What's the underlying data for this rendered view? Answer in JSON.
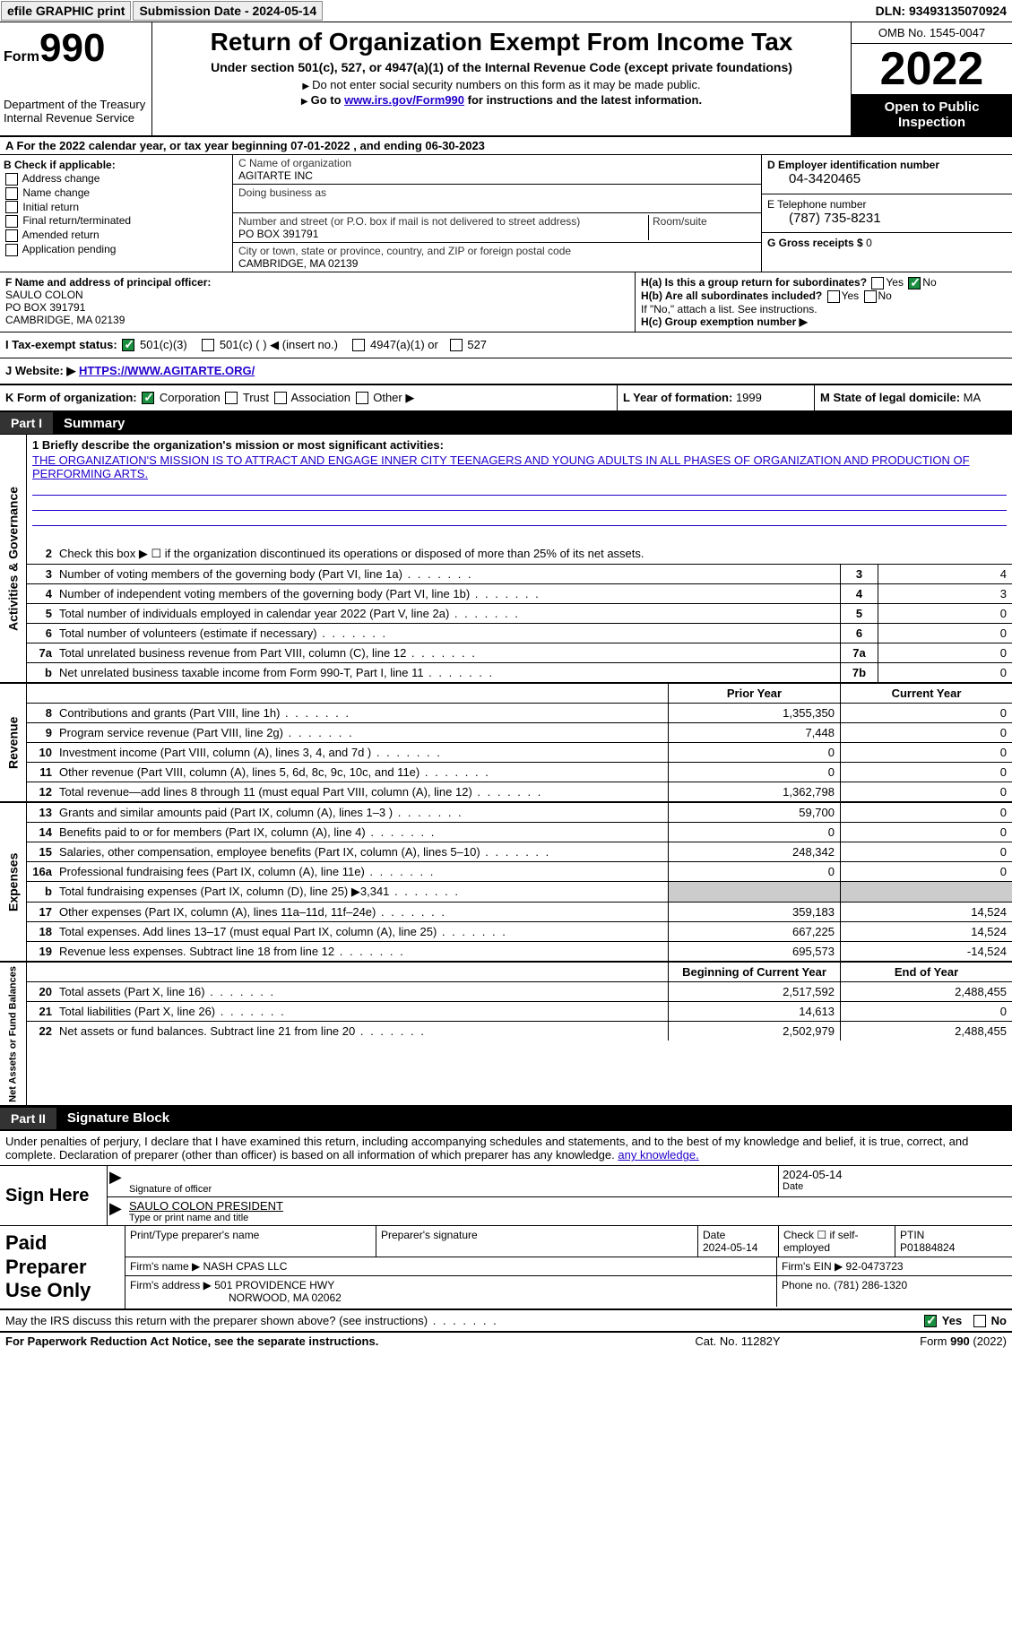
{
  "topbar": {
    "efile": "efile GRAPHIC print",
    "submission": "Submission Date - 2024-05-14",
    "dln": "DLN: 93493135070924"
  },
  "header": {
    "form_label": "Form",
    "form_num": "990",
    "dept": "Department of the Treasury Internal Revenue Service",
    "title": "Return of Organization Exempt From Income Tax",
    "subtitle1": "Under section 501(c), 527, or 4947(a)(1) of the Internal Revenue Code (except private foundations)",
    "subtitle2": "Do not enter social security numbers on this form as it may be made public.",
    "subtitle3_pre": "Go to ",
    "subtitle3_link": "www.irs.gov/Form990",
    "subtitle3_post": " for instructions and the latest information.",
    "omb": "OMB No. 1545-0047",
    "year": "2022",
    "open": "Open to Public Inspection"
  },
  "rowA": {
    "text": "A For the 2022 calendar year, or tax year beginning 07-01-2022    , and ending 06-30-2023"
  },
  "colB": {
    "label": "B Check if applicable:",
    "opts": [
      "Address change",
      "Name change",
      "Initial return",
      "Final return/terminated",
      "Amended return",
      "Application pending"
    ]
  },
  "colC": {
    "name_lbl": "C Name of organization",
    "name": "AGITARTE INC",
    "dba_lbl": "Doing business as",
    "dba": "",
    "addr_lbl": "Number and street (or P.O. box if mail is not delivered to street address)",
    "addr": "PO BOX 391791",
    "room_lbl": "Room/suite",
    "city_lbl": "City or town, state or province, country, and ZIP or foreign postal code",
    "city": "CAMBRIDGE, MA  02139"
  },
  "colD": {
    "ein_lbl": "D Employer identification number",
    "ein": "04-3420465",
    "tel_lbl": "E Telephone number",
    "tel": "(787) 735-8231",
    "gross_lbl": "G Gross receipts $",
    "gross": "0"
  },
  "secF": {
    "lbl": "F Name and address of principal officer:",
    "name": "SAULO COLON",
    "addr1": "PO BOX 391791",
    "addr2": "CAMBRIDGE, MA  02139"
  },
  "secH": {
    "ha": "H(a)  Is this a group return for subordinates?",
    "hb": "H(b)  Are all subordinates included?",
    "hb_note": "If \"No,\" attach a list. See instructions.",
    "hc": "H(c)  Group exemption number ▶",
    "yes": "Yes",
    "no": "No"
  },
  "rowI": {
    "lbl": "I  Tax-exempt status:",
    "o1": "501(c)(3)",
    "o2": "501(c) (  ) ◀ (insert no.)",
    "o3": "4947(a)(1) or",
    "o4": "527"
  },
  "rowJ": {
    "lbl": "J  Website: ▶",
    "url": "HTTPS://WWW.AGITARTE.ORG/"
  },
  "rowK": {
    "lbl": "K Form of organization:",
    "o1": "Corporation",
    "o2": "Trust",
    "o3": "Association",
    "o4": "Other ▶",
    "l_lbl": "L Year of formation:",
    "l_val": "1999",
    "m_lbl": "M State of legal domicile:",
    "m_val": "MA"
  },
  "parts": {
    "p1": "Part I",
    "p1t": "Summary",
    "p2": "Part II",
    "p2t": "Signature Block"
  },
  "p1": {
    "tabs": {
      "ag": "Activities & Governance",
      "rev": "Revenue",
      "exp": "Expenses",
      "na": "Net Assets or Fund Balances"
    },
    "l1_lbl": "1  Briefly describe the organization's mission or most significant activities:",
    "l1_val": "THE ORGANIZATION'S MISSION IS TO ATTRACT AND ENGAGE INNER CITY TEENAGERS AND YOUNG ADULTS IN ALL PHASES OF ORGANIZATION AND PRODUCTION OF PERFORMING ARTS.",
    "l2": "Check this box ▶ ☐ if the organization discontinued its operations or disposed of more than 25% of its net assets.",
    "rows_ag": [
      {
        "n": "3",
        "t": "Number of voting members of the governing body (Part VI, line 1a)",
        "b": "3",
        "v": "4"
      },
      {
        "n": "4",
        "t": "Number of independent voting members of the governing body (Part VI, line 1b)",
        "b": "4",
        "v": "3"
      },
      {
        "n": "5",
        "t": "Total number of individuals employed in calendar year 2022 (Part V, line 2a)",
        "b": "5",
        "v": "0"
      },
      {
        "n": "6",
        "t": "Total number of volunteers (estimate if necessary)",
        "b": "6",
        "v": "0"
      },
      {
        "n": "7a",
        "t": "Total unrelated business revenue from Part VIII, column (C), line 12",
        "b": "7a",
        "v": "0"
      },
      {
        "n": "b",
        "t": "Net unrelated business taxable income from Form 990-T, Part I, line 11",
        "b": "7b",
        "v": "0"
      }
    ],
    "col_py": "Prior Year",
    "col_cy": "Current Year",
    "rows_rev": [
      {
        "n": "8",
        "t": "Contributions and grants (Part VIII, line 1h)",
        "py": "1,355,350",
        "cy": "0"
      },
      {
        "n": "9",
        "t": "Program service revenue (Part VIII, line 2g)",
        "py": "7,448",
        "cy": "0"
      },
      {
        "n": "10",
        "t": "Investment income (Part VIII, column (A), lines 3, 4, and 7d )",
        "py": "0",
        "cy": "0"
      },
      {
        "n": "11",
        "t": "Other revenue (Part VIII, column (A), lines 5, 6d, 8c, 9c, 10c, and 11e)",
        "py": "0",
        "cy": "0"
      },
      {
        "n": "12",
        "t": "Total revenue—add lines 8 through 11 (must equal Part VIII, column (A), line 12)",
        "py": "1,362,798",
        "cy": "0"
      }
    ],
    "rows_exp": [
      {
        "n": "13",
        "t": "Grants and similar amounts paid (Part IX, column (A), lines 1–3 )",
        "py": "59,700",
        "cy": "0"
      },
      {
        "n": "14",
        "t": "Benefits paid to or for members (Part IX, column (A), line 4)",
        "py": "0",
        "cy": "0"
      },
      {
        "n": "15",
        "t": "Salaries, other compensation, employee benefits (Part IX, column (A), lines 5–10)",
        "py": "248,342",
        "cy": "0"
      },
      {
        "n": "16a",
        "t": "Professional fundraising fees (Part IX, column (A), line 11e)",
        "py": "0",
        "cy": "0"
      },
      {
        "n": "b",
        "t": "Total fundraising expenses (Part IX, column (D), line 25) ▶3,341",
        "py": "",
        "cy": "",
        "shade": true
      },
      {
        "n": "17",
        "t": "Other expenses (Part IX, column (A), lines 11a–11d, 11f–24e)",
        "py": "359,183",
        "cy": "14,524"
      },
      {
        "n": "18",
        "t": "Total expenses. Add lines 13–17 (must equal Part IX, column (A), line 25)",
        "py": "667,225",
        "cy": "14,524"
      },
      {
        "n": "19",
        "t": "Revenue less expenses. Subtract line 18 from line 12",
        "py": "695,573",
        "cy": "-14,524"
      }
    ],
    "col_boy": "Beginning of Current Year",
    "col_eoy": "End of Year",
    "rows_na": [
      {
        "n": "20",
        "t": "Total assets (Part X, line 16)",
        "py": "2,517,592",
        "cy": "2,488,455"
      },
      {
        "n": "21",
        "t": "Total liabilities (Part X, line 26)",
        "py": "14,613",
        "cy": "0"
      },
      {
        "n": "22",
        "t": "Net assets or fund balances. Subtract line 21 from line 20",
        "py": "2,502,979",
        "cy": "2,488,455"
      }
    ]
  },
  "sig": {
    "decl": "Under penalties of perjury, I declare that I have examined this return, including accompanying schedules and statements, and to the best of my knowledge and belief, it is true, correct, and complete. Declaration of preparer (other than officer) is based on all information of which preparer has any knowledge.",
    "sign_here": "Sign Here",
    "sig_lbl": "Signature of officer",
    "date": "2024-05-14",
    "date_lbl": "Date",
    "name": "SAULO COLON  PRESIDENT",
    "name_lbl": "Type or print name and title"
  },
  "prep": {
    "lbl": "Paid Preparer Use Only",
    "h1": "Print/Type preparer's name",
    "h2": "Preparer's signature",
    "h3": "Date",
    "h3v": "2024-05-14",
    "h4": "Check ☐ if self-employed",
    "h5": "PTIN",
    "h5v": "P01884824",
    "firm_lbl": "Firm's name    ▶",
    "firm": "NASH CPAS LLC",
    "ein_lbl": "Firm's EIN ▶",
    "ein": "92-0473723",
    "addr_lbl": "Firm's address ▶",
    "addr1": "501 PROVIDENCE HWY",
    "addr2": "NORWOOD, MA  02062",
    "ph_lbl": "Phone no.",
    "ph": "(781) 286-1320"
  },
  "may": {
    "q": "May the IRS discuss this return with the preparer shown above? (see instructions)",
    "yes": "Yes",
    "no": "No"
  },
  "footer": {
    "l": "For Paperwork Reduction Act Notice, see the separate instructions.",
    "m": "Cat. No. 11282Y",
    "r": "Form 990 (2022)"
  }
}
